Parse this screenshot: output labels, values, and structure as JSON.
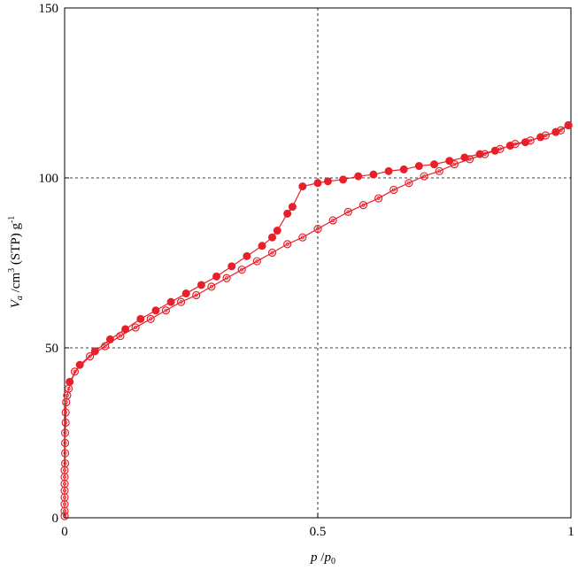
{
  "chart_data": {
    "type": "scatter",
    "title": "",
    "xlabel": {
      "var": "p",
      "sep": " /",
      "ref": "p",
      "ref_sub": "0"
    },
    "ylabel": {
      "var": "V",
      "var_sub": "a",
      "unit_a": " /cm",
      "unit_sup": "3",
      "unit_b": " (STP) g",
      "unit_sup2": "-1"
    },
    "xlim": [
      0,
      1
    ],
    "ylim": [
      0,
      150
    ],
    "x_ticks": [
      {
        "value": 0,
        "label": "0"
      },
      {
        "value": 0.5,
        "label": "0.5"
      },
      {
        "value": 1,
        "label": "1"
      }
    ],
    "y_ticks": [
      {
        "value": 0,
        "label": "0"
      },
      {
        "value": 50,
        "label": "50"
      },
      {
        "value": 100,
        "label": "100"
      },
      {
        "value": 150,
        "label": "150"
      }
    ],
    "gridlines": {
      "x": [
        0.5
      ],
      "y": [
        50,
        100
      ]
    },
    "series": [
      {
        "marker": "open-circle",
        "color": "#e8202a",
        "points": [
          [
            0.0,
            0.5
          ],
          [
            0.0,
            2
          ],
          [
            0.0,
            4
          ],
          [
            0.0,
            6
          ],
          [
            0.0,
            8
          ],
          [
            0.0,
            10
          ],
          [
            0.0,
            12
          ],
          [
            0.0,
            14
          ],
          [
            0.001,
            16
          ],
          [
            0.001,
            19
          ],
          [
            0.001,
            22
          ],
          [
            0.001,
            25
          ],
          [
            0.002,
            28
          ],
          [
            0.002,
            31
          ],
          [
            0.003,
            34
          ],
          [
            0.005,
            36
          ],
          [
            0.008,
            38
          ],
          [
            0.02,
            43
          ],
          [
            0.05,
            47.5
          ],
          [
            0.08,
            50.5
          ],
          [
            0.11,
            53.5
          ],
          [
            0.14,
            56
          ],
          [
            0.17,
            58.5
          ],
          [
            0.2,
            61
          ],
          [
            0.23,
            63.5
          ],
          [
            0.26,
            65.5
          ],
          [
            0.29,
            68
          ],
          [
            0.32,
            70.5
          ],
          [
            0.35,
            73
          ],
          [
            0.38,
            75.5
          ],
          [
            0.41,
            78
          ],
          [
            0.44,
            80.5
          ],
          [
            0.47,
            82.5
          ],
          [
            0.5,
            85
          ],
          [
            0.53,
            87.5
          ],
          [
            0.56,
            90
          ],
          [
            0.59,
            92
          ],
          [
            0.62,
            94
          ],
          [
            0.65,
            96.5
          ],
          [
            0.68,
            98.5
          ],
          [
            0.71,
            100.5
          ],
          [
            0.74,
            102
          ],
          [
            0.77,
            104
          ],
          [
            0.8,
            105.5
          ],
          [
            0.83,
            107
          ],
          [
            0.86,
            108.5
          ],
          [
            0.89,
            110
          ],
          [
            0.92,
            111
          ],
          [
            0.95,
            112.5
          ],
          [
            0.98,
            114
          ],
          [
            0.995,
            115.5
          ]
        ]
      },
      {
        "marker": "filled-circle",
        "color": "#e8202a",
        "points": [
          [
            0.995,
            115.5
          ],
          [
            0.97,
            113.5
          ],
          [
            0.94,
            112
          ],
          [
            0.91,
            110.5
          ],
          [
            0.88,
            109.5
          ],
          [
            0.85,
            108
          ],
          [
            0.82,
            107
          ],
          [
            0.79,
            106
          ],
          [
            0.76,
            105
          ],
          [
            0.73,
            104
          ],
          [
            0.7,
            103.5
          ],
          [
            0.67,
            102.5
          ],
          [
            0.64,
            102
          ],
          [
            0.61,
            101
          ],
          [
            0.58,
            100.5
          ],
          [
            0.55,
            99.5
          ],
          [
            0.52,
            99
          ],
          [
            0.5,
            98.5
          ],
          [
            0.47,
            97.5
          ],
          [
            0.45,
            91.5
          ],
          [
            0.44,
            89.5
          ],
          [
            0.42,
            84.5
          ],
          [
            0.41,
            82.5
          ],
          [
            0.39,
            80
          ],
          [
            0.36,
            77
          ],
          [
            0.33,
            74
          ],
          [
            0.3,
            71
          ],
          [
            0.27,
            68.5
          ],
          [
            0.24,
            66
          ],
          [
            0.21,
            63.5
          ],
          [
            0.18,
            61
          ],
          [
            0.15,
            58.5
          ],
          [
            0.12,
            55.5
          ],
          [
            0.09,
            52.5
          ],
          [
            0.06,
            49
          ],
          [
            0.03,
            45
          ],
          [
            0.01,
            40
          ]
        ]
      }
    ]
  }
}
